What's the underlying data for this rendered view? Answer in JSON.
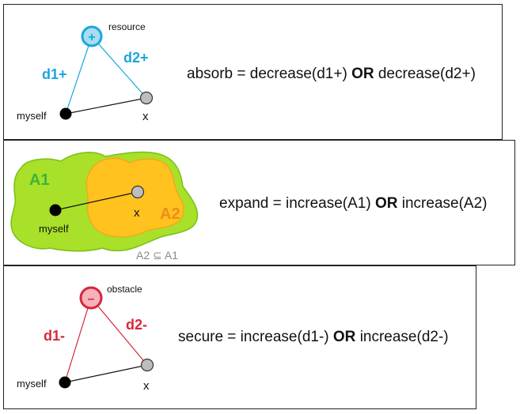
{
  "absorb": {
    "resource_label": "resource",
    "plus_symbol": "+",
    "d1_label": "d1+",
    "d2_label": "d2+",
    "myself_label": "myself",
    "x_label": "x",
    "formula": {
      "lhs": "absorb = decrease(d1+)",
      "op": "OR",
      "rhs": "decrease(d2+)"
    },
    "colors": {
      "accent": "#1aa7dc",
      "node_fill": "#a8dcf0"
    }
  },
  "expand": {
    "a1_label": "A1",
    "a2_label": "A2",
    "myself_label": "myself",
    "x_label": "x",
    "subset_note": "A2 ⊆ A1",
    "formula": {
      "lhs": "expand = increase(A1)",
      "op": "OR",
      "rhs": "increase(A2)"
    },
    "colors": {
      "a1_fill": "#a8e02a",
      "a1_label": "#3fb23a",
      "a2_fill": "#ffc21f",
      "a2_label": "#f08c1c",
      "note": "#8a8a8a"
    }
  },
  "secure": {
    "obstacle_label": "obstacle",
    "minus_symbol": "–",
    "d1_label": "d1-",
    "d2_label": "d2-",
    "myself_label": "myself",
    "x_label": "x",
    "formula": {
      "lhs": "secure = increase(d1-)",
      "op": "OR",
      "rhs": "increase(d2-)"
    },
    "colors": {
      "accent": "#d8263a",
      "node_fill": "#f7b2bc"
    }
  }
}
